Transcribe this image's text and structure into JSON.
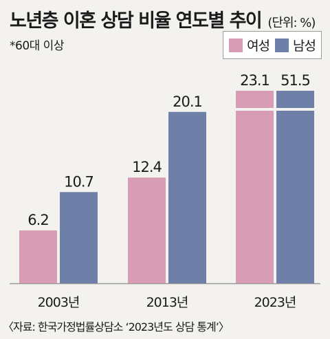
{
  "header": {
    "title": "노년층 이혼 상담 비율 연도별 추이",
    "unit": "(단위: %)",
    "note": "*60대 이상"
  },
  "colors": {
    "female": "#d99cb5",
    "male": "#6e7fa8",
    "background": "#f3f2ee"
  },
  "chart_data": {
    "type": "bar",
    "categories": [
      "2003년",
      "2013년",
      "2023년"
    ],
    "series": [
      {
        "name": "여성",
        "values": [
          6.2,
          12.4,
          23.1
        ]
      },
      {
        "name": "남성",
        "values": [
          10.7,
          20.1,
          51.5
        ]
      }
    ],
    "axis_break": "남성 2023년 막대 생략 표시",
    "grid": false,
    "legend": "top-right"
  },
  "source": "〈자료: 한국가정법률상담소 ‘2023년도 상담 통계’〉"
}
